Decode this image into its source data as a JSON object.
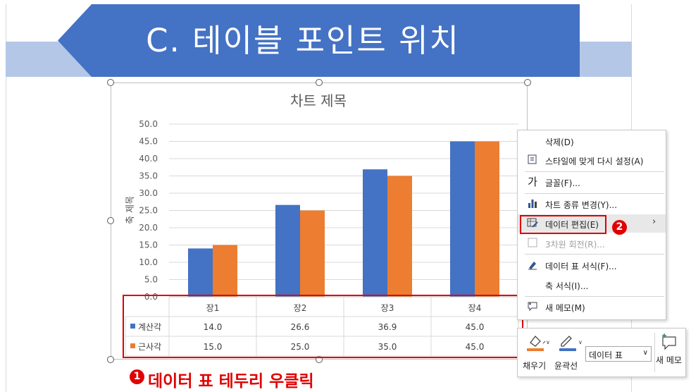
{
  "slide": {
    "title": "C. 테이블 포인트 위치"
  },
  "chart_data": {
    "type": "bar",
    "title": "차트 제목",
    "ylabel": "축 제목",
    "xlabel": "",
    "ylim": [
      0,
      50
    ],
    "yticks": [
      "0.0",
      "5.0",
      "10.0",
      "15.0",
      "20.0",
      "25.0",
      "30.0",
      "35.0",
      "40.0",
      "45.0",
      "50.0"
    ],
    "categories": [
      "장1",
      "장2",
      "장3",
      "장4"
    ],
    "series": [
      {
        "name": "계산각",
        "values": [
          14.0,
          26.6,
          36.9,
          45.0
        ],
        "display": [
          "14.0",
          "26.6",
          "36.9",
          "45.0"
        ],
        "color": "#4472c4"
      },
      {
        "name": "근사각",
        "values": [
          15.0,
          25.0,
          35.0,
          45.0
        ],
        "display": [
          "15.0",
          "25.0",
          "35.0",
          "45.0"
        ],
        "color": "#ed7d31"
      }
    ],
    "grid": true,
    "data_table": true
  },
  "annotations": {
    "step1_badge": "❶",
    "step1_text": "데이터 표 테두리 우클릭",
    "step2_badge": "❷",
    "accent": "#e00000"
  },
  "context_menu": {
    "items": [
      {
        "icon": "none",
        "label": "삭제(D)"
      },
      {
        "icon": "reset-style-icon",
        "label": "스타일에 맞게 다시 설정(A)"
      },
      {
        "icon": "font-icon",
        "glyph": "가",
        "label": "글꼴(F)..."
      },
      {
        "icon": "chart-type-icon",
        "label": "차트 종류 변경(Y)..."
      },
      {
        "icon": "edit-data-icon",
        "label": "데이터 편집(E)"
      },
      {
        "icon": "3d-rotation-icon",
        "label": "3차원 회전(R)...",
        "disabled": true
      },
      {
        "icon": "format-table-icon",
        "label": "데이터 표 서식(F)..."
      },
      {
        "icon": "none",
        "label": "축 서식(I)..."
      },
      {
        "icon": "new-comment-icon",
        "label": "새 메모(M)"
      }
    ]
  },
  "mini_toolbar": {
    "fill_label": "채우기",
    "outline_label": "윤곽선",
    "element_select": "데이터 표",
    "new_comment_label": "새 메모",
    "fill_color": "#ed7d31",
    "outline_color": "#4472c4"
  }
}
